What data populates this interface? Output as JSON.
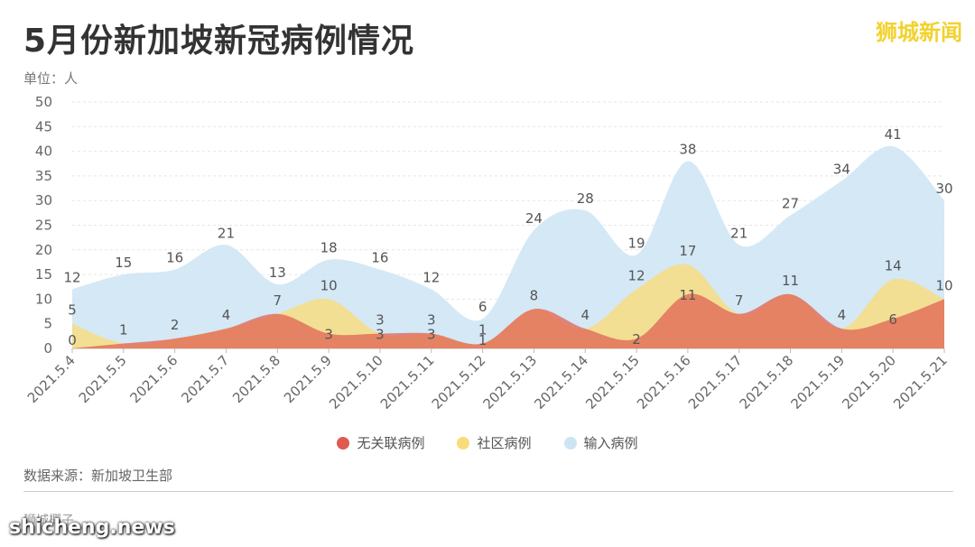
{
  "header": {
    "title": "5月份新加坡新冠病例情况",
    "brand": "狮城新闻",
    "unit_label": "单位：人"
  },
  "legend": {
    "items": [
      {
        "label": "无关联病例",
        "color": "#e05a4f"
      },
      {
        "label": "社区病例",
        "color": "#f9dc7a"
      },
      {
        "label": "输入病例",
        "color": "#cde4f5"
      }
    ]
  },
  "footer": {
    "source": "数据来源：新加坡卫生部",
    "author": "狮城椰子",
    "watermark": "shicheng.news"
  },
  "chart_data": {
    "type": "area",
    "categories": [
      "2021.5.4",
      "2021.5.5",
      "2021.5.6",
      "2021.5.7",
      "2021.5.8",
      "2021.5.9",
      "2021.5.10",
      "2021.5.11",
      "2021.5.12",
      "2021.5.13",
      "2021.5.14",
      "2021.5.15",
      "2021.5.16",
      "2021.5.17",
      "2021.5.18",
      "2021.5.19",
      "2021.5.20",
      "2021.5.21"
    ],
    "ylim": [
      0,
      50
    ],
    "yticks": [
      0,
      5,
      10,
      15,
      20,
      25,
      30,
      35,
      40,
      45,
      50
    ],
    "series": [
      {
        "name": "输入病例",
        "color": "#cde4f5",
        "values": [
          12,
          15,
          16,
          21,
          13,
          18,
          16,
          12,
          6,
          24,
          28,
          19,
          38,
          21,
          27,
          34,
          41,
          30
        ]
      },
      {
        "name": "社区病例",
        "color": "#f9dc7a",
        "values": [
          5,
          1,
          2,
          4,
          7,
          10,
          3,
          3,
          1,
          8,
          4,
          12,
          17,
          7,
          11,
          4,
          14,
          10
        ]
      },
      {
        "name": "无关联病例",
        "color": "#e05a4f",
        "values": [
          0,
          1,
          2,
          4,
          7,
          3,
          3,
          3,
          1,
          8,
          4,
          2,
          11,
          7,
          11,
          4,
          6,
          10
        ]
      }
    ],
    "labels_top": [
      12,
      15,
      16,
      21,
      13,
      18,
      16,
      12,
      6,
      24,
      28,
      19,
      38,
      21,
      27,
      34,
      41,
      30
    ],
    "labels_mid": [
      5,
      1,
      2,
      4,
      7,
      10,
      3,
      3,
      1,
      8,
      4,
      12,
      17,
      7,
      11,
      4,
      14,
      10
    ],
    "labels_low": [
      0,
      "",
      "",
      "",
      "",
      3,
      3,
      3,
      1,
      "",
      "",
      2,
      11,
      "",
      "",
      "",
      6,
      ""
    ]
  }
}
